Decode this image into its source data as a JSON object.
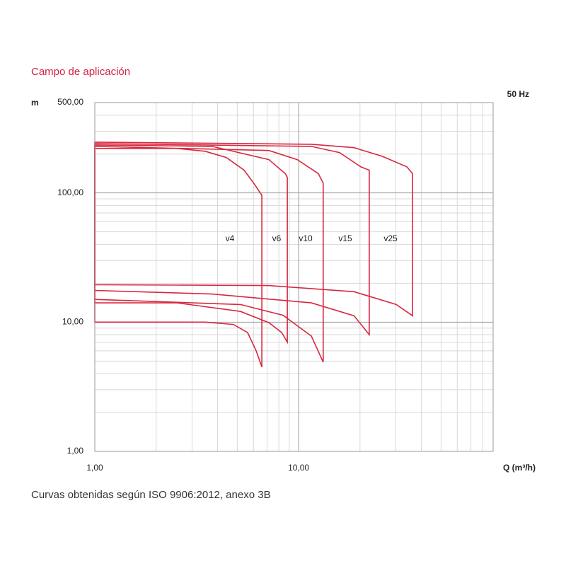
{
  "chart_data": {
    "type": "line",
    "title": "Campo de aplicación",
    "ylabel": "m",
    "xlabel": "Q (m³/h)",
    "frequency": "50 Hz",
    "caption": "Curvas obtenidas según ISO 9906:2012, anexo 3B",
    "xscale": "log",
    "yscale": "log",
    "xlim": [
      1,
      90
    ],
    "ylim": [
      1,
      500
    ],
    "xticks": [
      {
        "value": 1,
        "label": "1,00"
      },
      {
        "value": 10,
        "label": "10,00"
      }
    ],
    "yticks": [
      {
        "value": 1,
        "label": "1,00"
      },
      {
        "value": 10,
        "label": "10,00"
      },
      {
        "value": 100,
        "label": "100,00"
      },
      {
        "value": 500,
        "label": "500,00"
      }
    ],
    "grid": true,
    "minor_grid": true,
    "series": [
      {
        "name": "v4",
        "color": "#d6283f",
        "x": [
          1,
          2.53,
          3.48,
          4.42,
          5.4,
          6.09,
          6.6,
          6.6,
          6.19,
          5.62,
          4.79,
          3.48,
          1
        ],
        "y": [
          221,
          221,
          210,
          188,
          150,
          116,
          96,
          4.5,
          6.0,
          8.3,
          9.6,
          10,
          10
        ]
      },
      {
        "name": "v6",
        "color": "#d6283f",
        "x": [
          1,
          3.77,
          7.15,
          8.59,
          8.8,
          8.8,
          8.26,
          7.15,
          5.19,
          2.53,
          1
        ],
        "y": [
          235,
          229,
          181,
          141,
          132,
          7.0,
          8.3,
          9.9,
          12.1,
          14.1,
          14.1
        ]
      },
      {
        "name": "v10",
        "color": "#d6283f",
        "x": [
          1,
          7.15,
          9.84,
          12.5,
          13.2,
          13.2,
          11.55,
          8.39,
          5.19,
          1
        ],
        "y": [
          229,
          213,
          181,
          141,
          119,
          4.9,
          7.8,
          11.3,
          13.7,
          15.0
        ]
      },
      {
        "name": "v15",
        "color": "#d6283f",
        "x": [
          1,
          11.55,
          15.9,
          20.2,
          22.2,
          22.2,
          18.7,
          11.55,
          3.77,
          1
        ],
        "y": [
          241,
          229,
          205,
          159,
          150,
          8.0,
          11.2,
          14.1,
          16.5,
          17.6
        ]
      },
      {
        "name": "v25",
        "color": "#d6283f",
        "x": [
          1,
          11.55,
          18.7,
          25.7,
          34.0,
          36.2,
          36.2,
          30.1,
          18.7,
          7.15,
          1
        ],
        "y": [
          247,
          238,
          224,
          192,
          159,
          141,
          11.2,
          13.7,
          17.2,
          19.2,
          19.5
        ]
      }
    ]
  }
}
